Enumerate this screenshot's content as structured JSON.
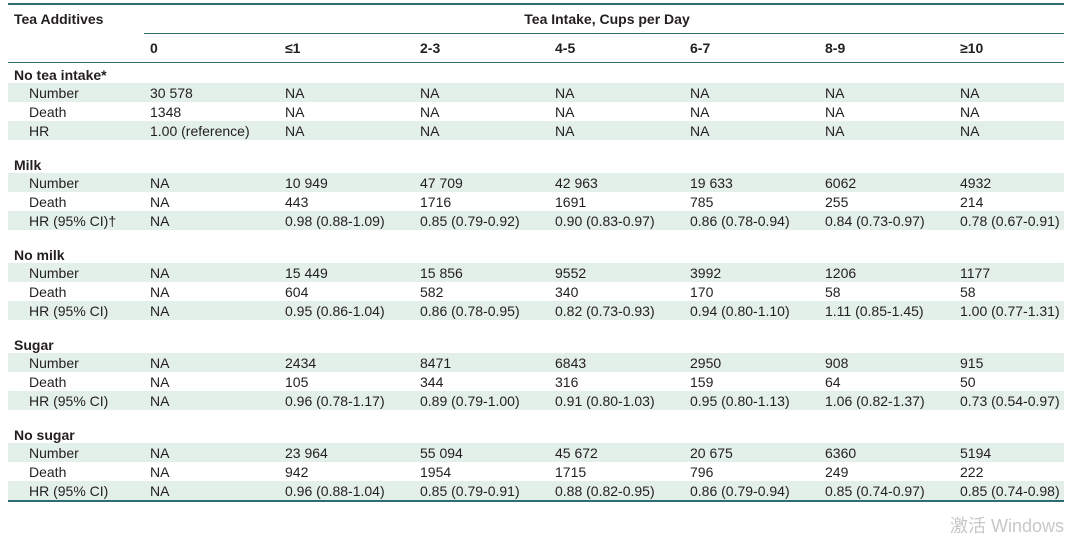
{
  "header": {
    "row_label": "Tea Additives",
    "spanner": "Tea Intake, Cups per Day",
    "columns": [
      "0",
      "≤1",
      "2-3",
      "4-5",
      "6-7",
      "8-9",
      "≥10"
    ]
  },
  "sections": [
    {
      "title": "No tea intake*",
      "rows": [
        {
          "label": "Number",
          "values": [
            "30 578",
            "NA",
            "NA",
            "NA",
            "NA",
            "NA",
            "NA"
          ]
        },
        {
          "label": "Death",
          "values": [
            "1348",
            "NA",
            "NA",
            "NA",
            "NA",
            "NA",
            "NA"
          ]
        },
        {
          "label": "HR",
          "values": [
            "1.00 (reference)",
            "NA",
            "NA",
            "NA",
            "NA",
            "NA",
            "NA"
          ]
        }
      ]
    },
    {
      "title": "Milk",
      "rows": [
        {
          "label": "Number",
          "values": [
            "NA",
            "10 949",
            "47 709",
            "42 963",
            "19 633",
            "6062",
            "4932"
          ]
        },
        {
          "label": "Death",
          "values": [
            "NA",
            "443",
            "1716",
            "1691",
            "785",
            "255",
            "214"
          ]
        },
        {
          "label": "HR (95% CI)†",
          "values": [
            "NA",
            "0.98 (0.88-1.09)",
            "0.85 (0.79-0.92)",
            "0.90 (0.83-0.97)",
            "0.86 (0.78-0.94)",
            "0.84 (0.73-0.97)",
            "0.78 (0.67-0.91)"
          ]
        }
      ]
    },
    {
      "title": "No milk",
      "rows": [
        {
          "label": "Number",
          "values": [
            "NA",
            "15 449",
            "15 856",
            "9552",
            "3992",
            "1206",
            "1177"
          ]
        },
        {
          "label": "Death",
          "values": [
            "NA",
            "604",
            "582",
            "340",
            "170",
            "58",
            "58"
          ]
        },
        {
          "label": "HR (95% CI)",
          "values": [
            "NA",
            "0.95 (0.86-1.04)",
            "0.86 (0.78-0.95)",
            "0.82 (0.73-0.93)",
            "0.94 (0.80-1.10)",
            "1.11 (0.85-1.45)",
            "1.00 (0.77-1.31)"
          ]
        }
      ]
    },
    {
      "title": "Sugar",
      "rows": [
        {
          "label": "Number",
          "values": [
            "NA",
            "2434",
            "8471",
            "6843",
            "2950",
            "908",
            "915"
          ]
        },
        {
          "label": "Death",
          "values": [
            "NA",
            "105",
            "344",
            "316",
            "159",
            "64",
            "50"
          ]
        },
        {
          "label": "HR (95% CI)",
          "values": [
            "NA",
            "0.96 (0.78-1.17)",
            "0.89 (0.79-1.00)",
            "0.91 (0.80-1.03)",
            "0.95 (0.80-1.13)",
            "1.06 (0.82-1.37)",
            "0.73 (0.54-0.97)"
          ]
        }
      ]
    },
    {
      "title": "No sugar",
      "rows": [
        {
          "label": "Number",
          "values": [
            "NA",
            "23 964",
            "55 094",
            "45 672",
            "20 675",
            "6360",
            "5194"
          ]
        },
        {
          "label": "Death",
          "values": [
            "NA",
            "942",
            "1954",
            "1715",
            "796",
            "249",
            "222"
          ]
        },
        {
          "label": "HR (95% CI)",
          "values": [
            "NA",
            "0.96 (0.88-1.04)",
            "0.85 (0.79-0.91)",
            "0.88 (0.82-0.95)",
            "0.86 (0.79-0.94)",
            "0.85 (0.74-0.97)",
            "0.85 (0.74-0.98)"
          ]
        }
      ]
    }
  ],
  "colors": {
    "rule": "#2c6e73",
    "row_shade": "#e3efe9",
    "text": "#231f20"
  },
  "watermark": "激活 Windows"
}
